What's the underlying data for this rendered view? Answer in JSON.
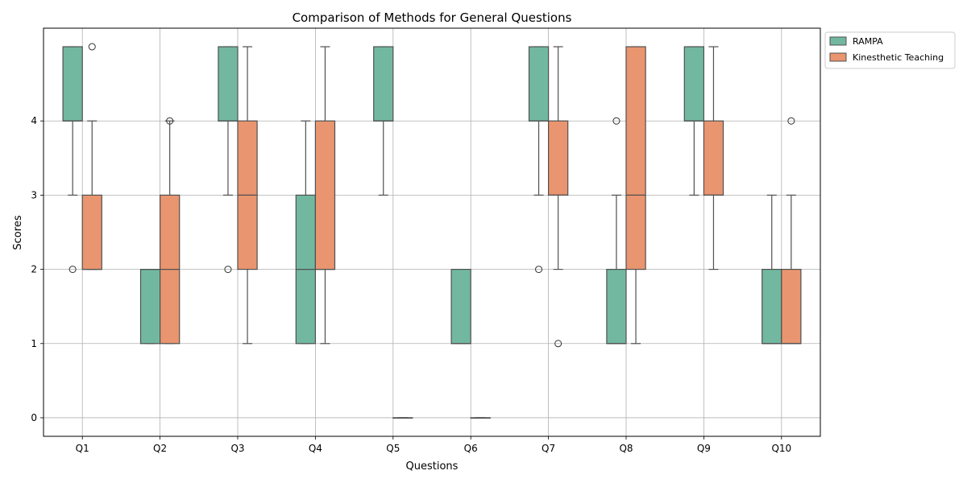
{
  "chart_data": {
    "type": "boxplot",
    "title": "Comparison of Methods for General Questions",
    "xlabel": "Questions",
    "ylabel": "Scores",
    "categories": [
      "Q1",
      "Q2",
      "Q3",
      "Q4",
      "Q5",
      "Q6",
      "Q7",
      "Q8",
      "Q9",
      "Q10"
    ],
    "yticks": [
      0,
      1,
      2,
      3,
      4
    ],
    "ylim": [
      -0.25,
      5.25
    ],
    "grid": true,
    "legend_position": "outside-top-right",
    "series": [
      {
        "name": "RAMPA",
        "color": "#72b8a0",
        "boxes": [
          {
            "whisker_low": 3,
            "q1": 4,
            "median": 4,
            "q3": 5,
            "whisker_high": 5,
            "outliers": [
              2
            ]
          },
          {
            "whisker_low": 1,
            "q1": 1,
            "median": 2,
            "q3": 2,
            "whisker_high": 2,
            "outliers": []
          },
          {
            "whisker_low": 3,
            "q1": 4,
            "median": 4,
            "q3": 5,
            "whisker_high": 5,
            "outliers": [
              2
            ]
          },
          {
            "whisker_low": 1,
            "q1": 1,
            "median": 2,
            "q3": 3,
            "whisker_high": 4,
            "outliers": []
          },
          {
            "whisker_low": 3,
            "q1": 4,
            "median": 4,
            "q3": 5,
            "whisker_high": 5,
            "outliers": []
          },
          {
            "whisker_low": 1,
            "q1": 1,
            "median": 1,
            "q3": 2,
            "whisker_high": 2,
            "outliers": []
          },
          {
            "whisker_low": 3,
            "q1": 4,
            "median": 4,
            "q3": 5,
            "whisker_high": 5,
            "outliers": [
              2
            ]
          },
          {
            "whisker_low": 1,
            "q1": 1,
            "median": 1,
            "q3": 2,
            "whisker_high": 3,
            "outliers": [
              4
            ]
          },
          {
            "whisker_low": 3,
            "q1": 4,
            "median": 4,
            "q3": 5,
            "whisker_high": 5,
            "outliers": []
          },
          {
            "whisker_low": 1,
            "q1": 1,
            "median": 1,
            "q3": 2,
            "whisker_high": 3,
            "outliers": []
          }
        ]
      },
      {
        "name": "Kinesthetic Teaching",
        "color": "#e9956f",
        "boxes": [
          {
            "whisker_low": 2,
            "q1": 2,
            "median": 2,
            "q3": 3,
            "whisker_high": 4,
            "outliers": [
              5
            ]
          },
          {
            "whisker_low": 1,
            "q1": 1,
            "median": 2,
            "q3": 3,
            "whisker_high": 4,
            "outliers": [
              4
            ]
          },
          {
            "whisker_low": 1,
            "q1": 2,
            "median": 3,
            "q3": 4,
            "whisker_high": 5,
            "outliers": []
          },
          {
            "whisker_low": 1,
            "q1": 2,
            "median": 2,
            "q3": 4,
            "whisker_high": 5,
            "outliers": []
          },
          {
            "whisker_low": 0,
            "q1": 0,
            "median": 0,
            "q3": 0,
            "whisker_high": 0,
            "outliers": []
          },
          {
            "whisker_low": 0,
            "q1": 0,
            "median": 0,
            "q3": 0,
            "whisker_high": 0,
            "outliers": []
          },
          {
            "whisker_low": 2,
            "q1": 3,
            "median": 3,
            "q3": 4,
            "whisker_high": 5,
            "outliers": [
              1
            ]
          },
          {
            "whisker_low": 1,
            "q1": 2,
            "median": 3,
            "q3": 5,
            "whisker_high": 5,
            "outliers": []
          },
          {
            "whisker_low": 2,
            "q1": 3,
            "median": 3,
            "q3": 4,
            "whisker_high": 5,
            "outliers": []
          },
          {
            "whisker_low": 1,
            "q1": 1,
            "median": 1,
            "q3": 2,
            "whisker_high": 3,
            "outliers": [
              4
            ]
          }
        ]
      }
    ]
  }
}
